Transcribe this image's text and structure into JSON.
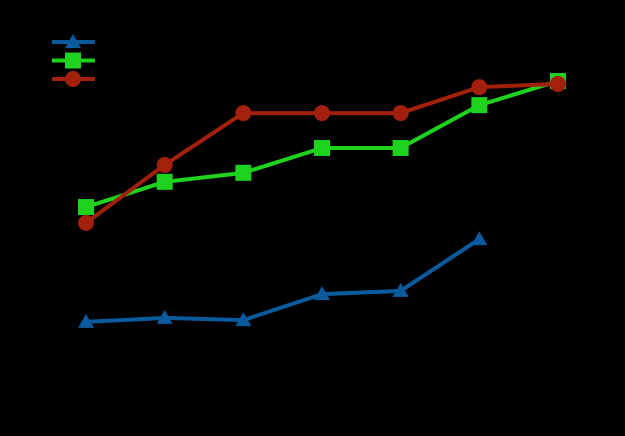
{
  "chart_data": {
    "type": "line",
    "x": [
      1,
      2,
      3,
      4,
      5,
      6,
      7
    ],
    "xlim": [
      0.5,
      7.5
    ],
    "ylim": [
      0,
      100
    ],
    "series": [
      {
        "color": "#0b5a9e",
        "marker": "triangle",
        "values": [
          21.7,
          22.8,
          22.2,
          29.4,
          30.3,
          44.7,
          null
        ]
      },
      {
        "color": "#1ed21e",
        "marker": "square",
        "values": [
          53.6,
          60.6,
          63.1,
          70,
          70,
          81.9,
          88.6
        ]
      },
      {
        "color": "#a2200c",
        "marker": "circle",
        "values": [
          49.2,
          65.3,
          79.7,
          79.7,
          79.7,
          86.9,
          87.8
        ]
      }
    ]
  }
}
